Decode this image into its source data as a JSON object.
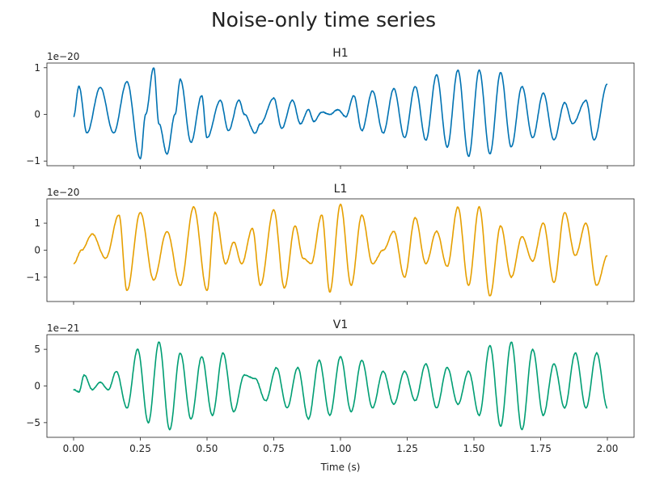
{
  "chart_data": {
    "type": "line",
    "title": "Noise-only time series",
    "xlabel": "Time (s)",
    "xlim": [
      -0.1,
      2.1
    ],
    "xticks": [
      0.0,
      0.25,
      0.5,
      0.75,
      1.0,
      1.25,
      1.5,
      1.75,
      2.0
    ],
    "xtick_labels": [
      "0.00",
      "0.25",
      "0.50",
      "0.75",
      "1.00",
      "1.25",
      "1.50",
      "1.75",
      "2.00"
    ],
    "panels": [
      {
        "name": "H1",
        "color": "#0072b2",
        "offset_text": "1e−20",
        "ylim": [
          -1.1,
          1.1
        ],
        "yticks": [
          1,
          0,
          -1
        ],
        "ytick_labels": [
          "1",
          "0",
          "−1"
        ],
        "x": [
          0.0,
          0.02,
          0.05,
          0.1,
          0.15,
          0.2,
          0.25,
          0.27,
          0.3,
          0.32,
          0.35,
          0.38,
          0.4,
          0.44,
          0.48,
          0.5,
          0.55,
          0.58,
          0.62,
          0.64,
          0.68,
          0.7,
          0.75,
          0.78,
          0.82,
          0.85,
          0.88,
          0.9,
          0.93,
          0.96,
          0.99,
          1.02,
          1.05,
          1.08,
          1.12,
          1.16,
          1.2,
          1.24,
          1.28,
          1.32,
          1.36,
          1.4,
          1.44,
          1.48,
          1.52,
          1.56,
          1.6,
          1.64,
          1.68,
          1.72,
          1.76,
          1.8,
          1.84,
          1.87,
          1.92,
          1.95,
          2.0
        ],
        "y": [
          -0.05,
          0.6,
          -0.4,
          0.58,
          -0.4,
          0.7,
          -0.95,
          0.0,
          1.0,
          -0.2,
          -0.85,
          0.0,
          0.75,
          -0.6,
          0.4,
          -0.5,
          0.3,
          -0.35,
          0.3,
          0.0,
          -0.4,
          -0.2,
          0.35,
          -0.3,
          0.3,
          -0.2,
          0.1,
          -0.15,
          0.05,
          0.0,
          0.1,
          -0.05,
          0.4,
          -0.35,
          0.5,
          -0.4,
          0.55,
          -0.5,
          0.6,
          -0.55,
          0.85,
          -0.7,
          0.95,
          -0.9,
          0.95,
          -0.85,
          0.9,
          -0.7,
          0.6,
          -0.5,
          0.45,
          -0.55,
          0.25,
          -0.2,
          0.3,
          -0.55,
          0.65
        ]
      },
      {
        "name": "L1",
        "color": "#e69f00",
        "offset_text": "1e−20",
        "ylim": [
          -1.9,
          1.9
        ],
        "yticks": [
          1,
          0,
          -1
        ],
        "ytick_labels": [
          "1",
          "0",
          "−1"
        ],
        "x": [
          0.0,
          0.03,
          0.07,
          0.12,
          0.17,
          0.2,
          0.25,
          0.3,
          0.35,
          0.4,
          0.45,
          0.5,
          0.53,
          0.57,
          0.6,
          0.63,
          0.67,
          0.7,
          0.75,
          0.79,
          0.83,
          0.86,
          0.89,
          0.93,
          0.96,
          1.0,
          1.04,
          1.08,
          1.12,
          1.16,
          1.2,
          1.24,
          1.28,
          1.32,
          1.36,
          1.4,
          1.44,
          1.48,
          1.52,
          1.56,
          1.6,
          1.64,
          1.68,
          1.72,
          1.76,
          1.8,
          1.84,
          1.88,
          1.92,
          1.96,
          2.0
        ],
        "y": [
          -0.5,
          0.0,
          0.6,
          -0.3,
          1.3,
          -1.5,
          1.4,
          -1.1,
          0.7,
          -1.3,
          1.6,
          -1.5,
          1.4,
          -0.5,
          0.3,
          -0.5,
          0.8,
          -1.3,
          1.5,
          -1.4,
          0.9,
          -0.3,
          -0.5,
          1.3,
          -1.55,
          1.7,
          -1.3,
          1.3,
          -0.5,
          0.0,
          0.7,
          -1.0,
          1.2,
          -0.5,
          0.7,
          -0.6,
          1.6,
          -1.3,
          1.6,
          -1.7,
          0.9,
          -1.0,
          0.5,
          -0.4,
          1.0,
          -1.2,
          1.4,
          -0.2,
          1.0,
          -1.3,
          -0.2
        ]
      },
      {
        "name": "V1",
        "color": "#009e73",
        "offset_text": "1e−21",
        "ylim": [
          -7,
          7
        ],
        "yticks": [
          5,
          0,
          -5
        ],
        "ytick_labels": [
          "5",
          "0",
          "−5"
        ],
        "x": [
          0.0,
          0.02,
          0.04,
          0.07,
          0.1,
          0.13,
          0.16,
          0.2,
          0.24,
          0.28,
          0.32,
          0.36,
          0.4,
          0.44,
          0.48,
          0.52,
          0.56,
          0.6,
          0.64,
          0.68,
          0.72,
          0.76,
          0.8,
          0.84,
          0.88,
          0.92,
          0.96,
          1.0,
          1.04,
          1.08,
          1.12,
          1.16,
          1.2,
          1.24,
          1.28,
          1.32,
          1.36,
          1.4,
          1.44,
          1.48,
          1.52,
          1.56,
          1.6,
          1.64,
          1.68,
          1.72,
          1.76,
          1.8,
          1.84,
          1.88,
          1.92,
          1.96,
          2.0
        ],
        "y": [
          -0.5,
          -0.8,
          1.5,
          -0.5,
          0.5,
          -0.5,
          2.0,
          -3.0,
          5.0,
          -5.0,
          6.0,
          -6.0,
          4.5,
          -4.5,
          4.0,
          -4.0,
          4.5,
          -3.5,
          1.5,
          1.0,
          -2.0,
          2.5,
          -3.0,
          2.5,
          -4.5,
          3.5,
          -4.0,
          4.0,
          -3.5,
          3.5,
          -3.0,
          2.0,
          -2.5,
          2.0,
          -2.0,
          3.0,
          -3.0,
          2.5,
          -2.5,
          2.0,
          -4.0,
          5.5,
          -5.5,
          6.0,
          -6.0,
          5.0,
          -4.0,
          3.0,
          -3.0,
          4.5,
          -3.0,
          4.5,
          -3.0
        ]
      }
    ]
  }
}
